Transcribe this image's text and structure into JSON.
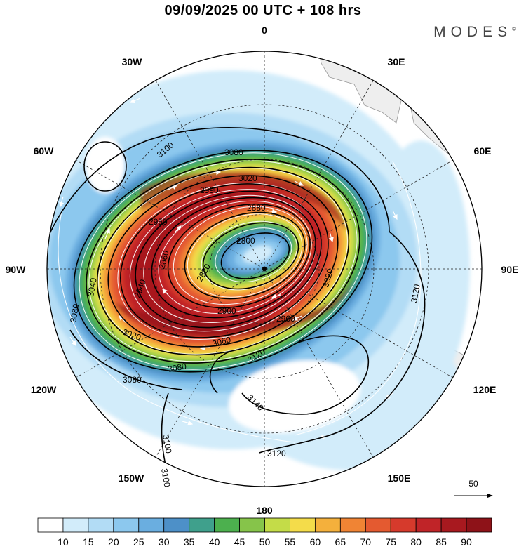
{
  "header": {
    "title": "09/09/2025  00 UTC  + 108 hrs",
    "brand": "MODES",
    "brand_mark": "©"
  },
  "map": {
    "projection": "south polar stereographic",
    "longitude_labels": {
      "n0": "0",
      "n30e": "30E",
      "n60e": "60E",
      "n90e": "90E",
      "n120e": "120E",
      "n150e": "150E",
      "n180": "180",
      "n150w": "150W",
      "n120w": "120W",
      "n90w": "90W",
      "n60w": "60W",
      "n30w": "30W"
    },
    "contour_labels": {
      "c1": "3100",
      "c2": "3080",
      "c3": "3020",
      "c4": "2990",
      "c5": "2950",
      "c6": "2800",
      "c7": "2820",
      "c8": "2860",
      "c9": "2900",
      "c10": "2940",
      "c11": "3020",
      "c12": "3040",
      "c13": "3080",
      "c14": "3080",
      "c15": "3080",
      "c16": "3060",
      "c17": "3120",
      "c18": "3140",
      "c19": "3120",
      "c20": "3100",
      "c21": "3100",
      "c22": "3120",
      "c23": "3020",
      "c24": "2880",
      "c25": "2960"
    },
    "reference_vector": "50"
  },
  "colorbar": {
    "ticks": [
      "10",
      "15",
      "20",
      "25",
      "30",
      "35",
      "40",
      "45",
      "50",
      "55",
      "60",
      "65",
      "70",
      "75",
      "80",
      "85",
      "90"
    ],
    "colors": [
      "#ffffff",
      "#d2ecfa",
      "#b2dcf5",
      "#8cc8ee",
      "#6aaee0",
      "#4d90c8",
      "#3fa08c",
      "#4cb04e",
      "#86c44a",
      "#c4dc48",
      "#f4dc4a",
      "#f4b03c",
      "#f08434",
      "#e45a30",
      "#d63a2c",
      "#c02428",
      "#a8191f",
      "#8e1218"
    ],
    "colors_interpretation": "fill colors of wind speed intervals"
  }
}
